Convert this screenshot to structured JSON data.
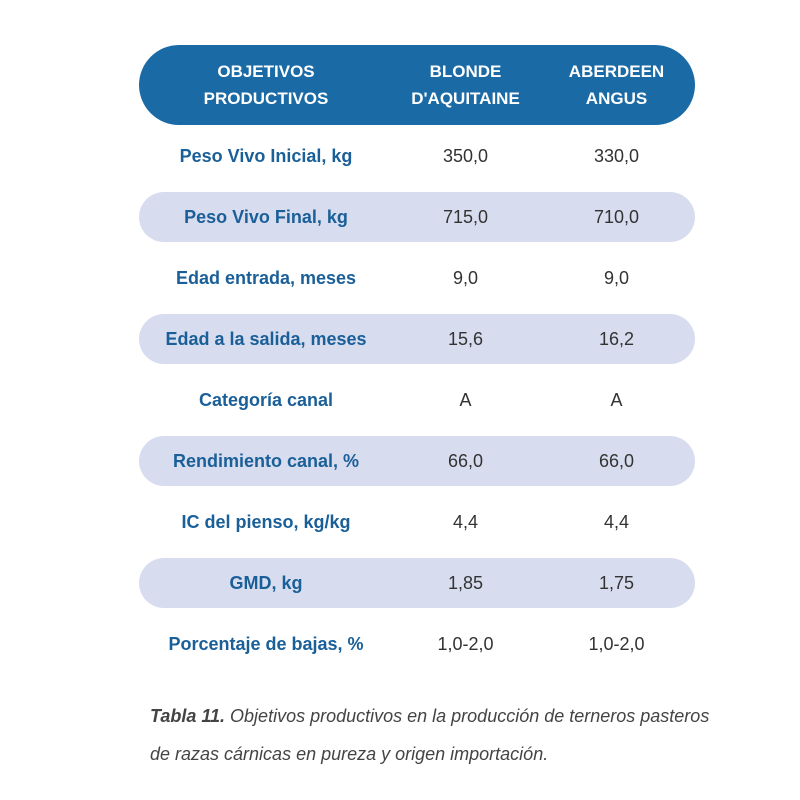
{
  "table": {
    "headers": {
      "col1_line1": "OBJETIVOS",
      "col1_line2": "PRODUCTIVOS",
      "col2_line1": "BLONDE",
      "col2_line2": "D'AQUITAINE",
      "col3_line1": "ABERDEEN",
      "col3_line2": "ANGUS"
    },
    "rows": [
      {
        "label": "Peso Vivo Inicial, kg",
        "blonde": "350,0",
        "angus": "330,0"
      },
      {
        "label": "Peso Vivo Final, kg",
        "blonde": "715,0",
        "angus": "710,0"
      },
      {
        "label": "Edad entrada, meses",
        "blonde": "9,0",
        "angus": "9,0"
      },
      {
        "label": "Edad a la salida, meses",
        "blonde": "15,6",
        "angus": "16,2"
      },
      {
        "label": "Categoría canal",
        "blonde": "A",
        "angus": "A"
      },
      {
        "label": "Rendimiento canal, %",
        "blonde": "66,0",
        "angus": "66,0"
      },
      {
        "label": "IC del pienso, kg/kg",
        "blonde": "4,4",
        "angus": "4,4"
      },
      {
        "label": "GMD, kg",
        "blonde": "1,85",
        "angus": "1,75"
      },
      {
        "label": "Porcentaje de bajas, %",
        "blonde": "1,0-2,0",
        "angus": "1,0-2,0"
      }
    ]
  },
  "caption": {
    "label": "Tabla 11.",
    "text": " Objetivos productivos en la producción de terneros pasteros de razas cárnicas en pureza y origen importación."
  },
  "colors": {
    "header_bg": "#1a6aa6",
    "row_shade": "#d7dcef",
    "label_text": "#1a5f98"
  }
}
